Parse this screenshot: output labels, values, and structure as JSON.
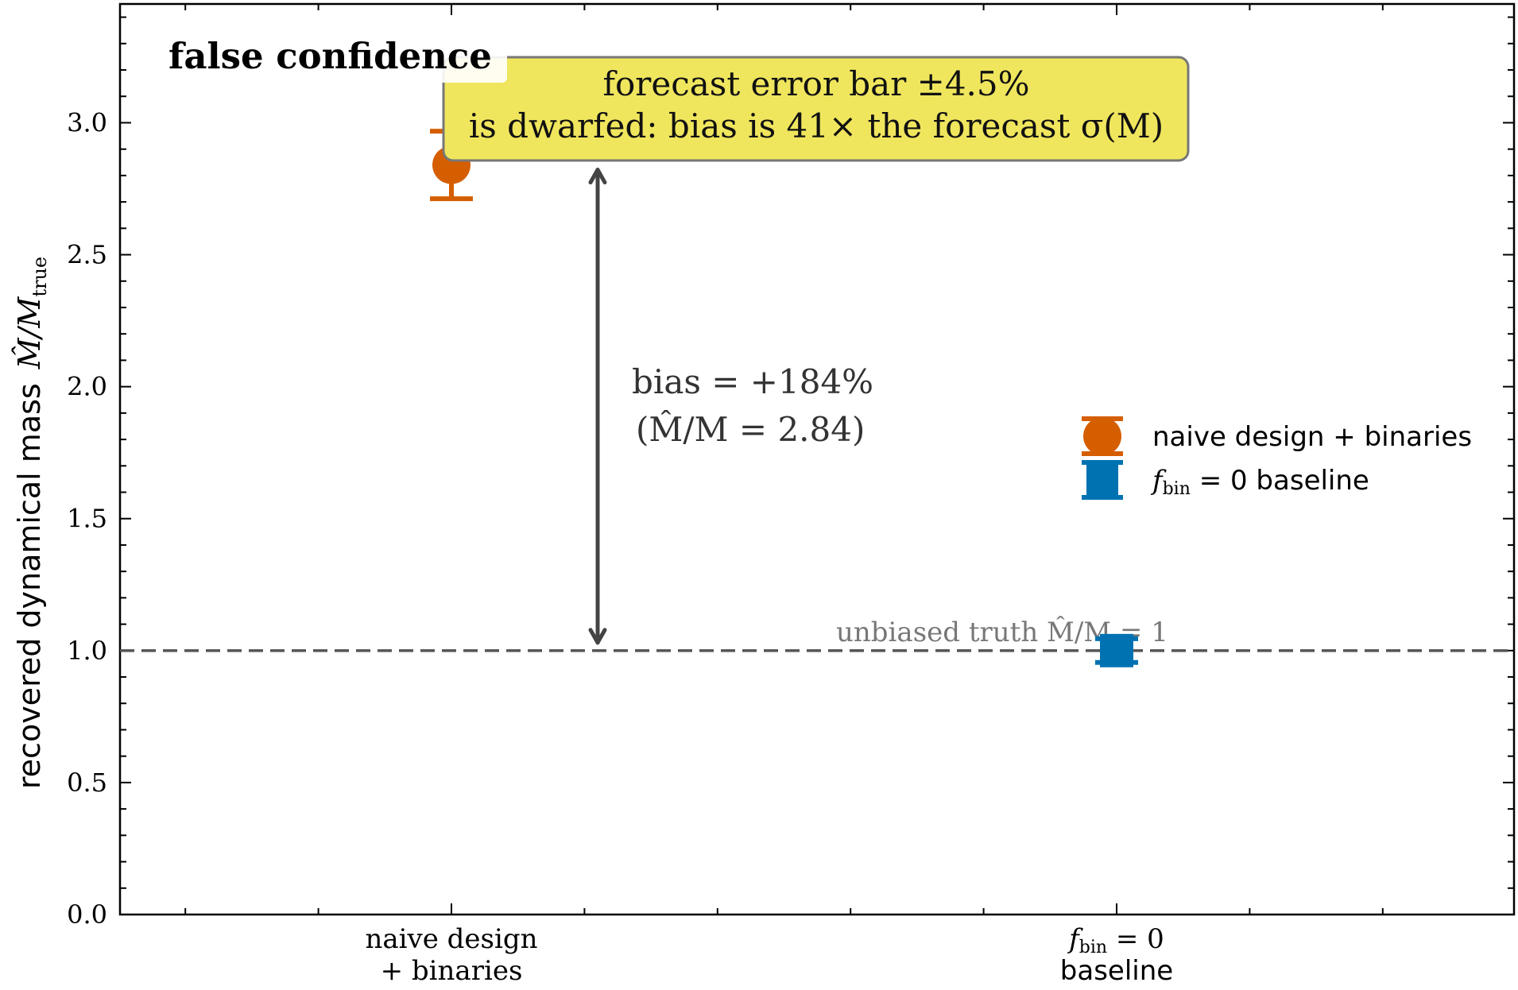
{
  "chart_data": {
    "type": "scatter",
    "title": "",
    "panel_label": "false confidence",
    "ylabel": "recovered dynamical mass",
    "ylabel_symbol": {
      "main": "M̂/M",
      "sub": "true"
    },
    "ylim": [
      0,
      3.45
    ],
    "yticks": [
      "0.0",
      "0.5",
      "1.0",
      "1.5",
      "2.0",
      "2.5",
      "3.0"
    ],
    "categories": [
      {
        "lines": [
          "naive design",
          "+ binaries"
        ]
      },
      {
        "math_main": "f",
        "math_sub": "bin",
        "math_rest": " = 0",
        "line2": "baseline"
      }
    ],
    "series": [
      {
        "legend_label": "naive design + binaries",
        "marker": "circle",
        "color": "#d55e00",
        "x_index": 0,
        "y": 2.84,
        "yerr": 0.128
      },
      {
        "legend_label_main": "f",
        "legend_label_sub": "bin",
        "legend_label_rest": " = 0 baseline",
        "marker": "square",
        "color": "#0072b2",
        "x_index": 1,
        "y": 1.0,
        "yerr": 0.045
      }
    ],
    "reference_line": {
      "y": 1.0,
      "label": "unbiased truth M̂/M = 1",
      "color": "#555555"
    },
    "annotations": {
      "bias_line1": "bias  = +184%",
      "bias_line2": "(M̂/M = 2.84)",
      "box_line1": "forecast error bar ±4.5%",
      "box_line2": "is dwarfed: bias is 41×  the forecast σ(M)",
      "box_color": "#f0e65e",
      "arrow_from": 1.0,
      "arrow_to": 2.84
    },
    "legend_position": "right-center",
    "grid": false
  }
}
